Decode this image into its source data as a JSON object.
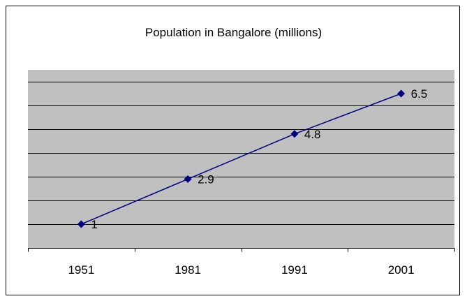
{
  "chart_data": {
    "type": "line",
    "title": "Population in Bangalore (millions)",
    "categories": [
      "1951",
      "1981",
      "1991",
      "2001"
    ],
    "series": [
      {
        "values": [
          1,
          2.9,
          4.8,
          6.5
        ]
      }
    ],
    "data_labels": [
      "1",
      "2.9",
      "4.8",
      "6.5"
    ],
    "ylim": [
      0,
      7.5
    ],
    "y_gridline_step": 1,
    "grid": true,
    "legend": "none",
    "colors": {
      "plot_background": "#c0c0c0",
      "line": "#000080",
      "marker": "#000080",
      "gridline": "#000000"
    }
  }
}
